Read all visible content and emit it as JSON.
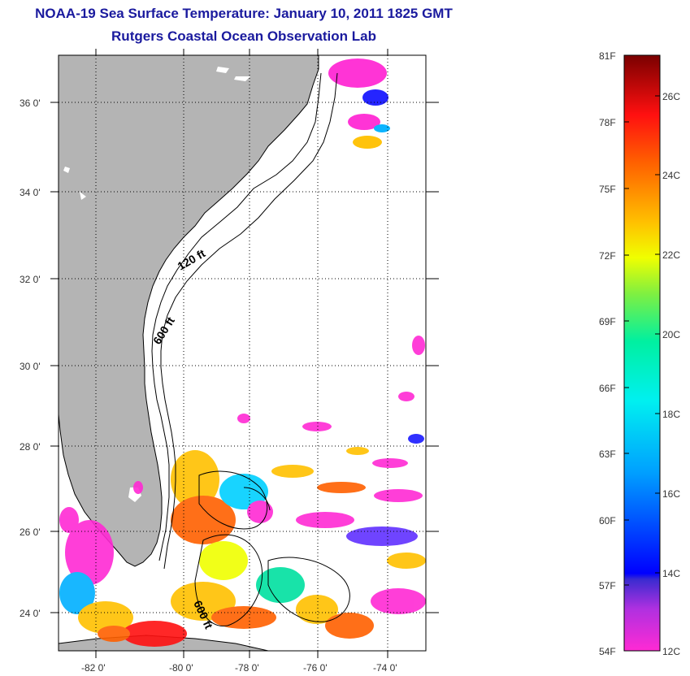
{
  "header": {
    "title": "NOAA-19 Sea Surface Temperature:  January 10, 2011 1825 GMT",
    "subtitle": "Rutgers Coastal Ocean Observation Lab"
  },
  "map": {
    "lat_labels": [
      "36 0'",
      "34 0'",
      "32 0'",
      "30 0'",
      "28 0'",
      "26 0'",
      "24 0'"
    ],
    "lon_labels": [
      "-82 0'",
      "-80 0'",
      "-78 0'",
      "-76 0'",
      "-74 0'"
    ],
    "contour_labels": [
      "120 ft",
      "600 ft",
      "600 ft"
    ],
    "land_color": "#b4b4b4"
  },
  "colorbar": {
    "fahrenheit": [
      "81F",
      "78F",
      "75F",
      "72F",
      "69F",
      "66F",
      "63F",
      "60F",
      "57F",
      "54F"
    ],
    "celsius": [
      "26C",
      "24C",
      "22C",
      "20C",
      "18C",
      "16C",
      "14C",
      "12C"
    ]
  }
}
